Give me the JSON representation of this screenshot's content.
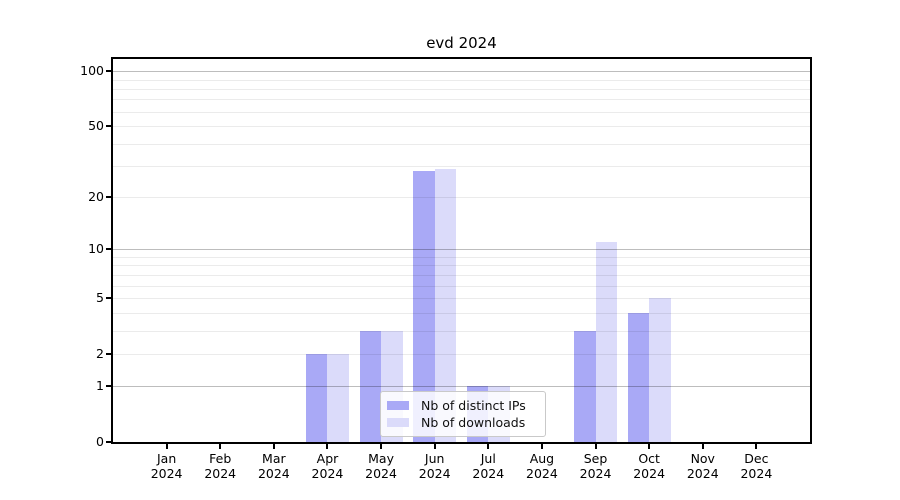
{
  "title": "evd 2024",
  "chart_data": {
    "type": "bar",
    "title": "evd 2024",
    "categories": [
      "Jan",
      "Feb",
      "Mar",
      "Apr",
      "May",
      "Jun",
      "Jul",
      "Aug",
      "Sep",
      "Oct",
      "Nov",
      "Dec"
    ],
    "category_year": "2024",
    "series": [
      {
        "name": "Nb of distinct IPs",
        "color": "#a9a9f6",
        "values": [
          0,
          0,
          0,
          2,
          3,
          28,
          1,
          0,
          3,
          4,
          0,
          0
        ]
      },
      {
        "name": "Nb of downloads",
        "color": "#dbdbfa",
        "values": [
          0,
          0,
          0,
          2,
          3,
          29,
          1,
          0,
          11,
          5,
          0,
          0
        ]
      }
    ],
    "xlabel": "",
    "ylabel": "",
    "y_scale": "log1p",
    "ylim": [
      0,
      116.5
    ],
    "y_ticks": [
      0,
      1,
      2,
      5,
      10,
      20,
      50,
      100
    ],
    "minor_gridlines": [
      2,
      3,
      4,
      5,
      6,
      7,
      8,
      9,
      20,
      30,
      40,
      50,
      60,
      70,
      80,
      90
    ],
    "major_gridlines": [
      1,
      10,
      100
    ],
    "grid": true,
    "legend_position": "inside-bottom-center"
  },
  "colors": {
    "bar_ips": "#a9a9f6",
    "bar_downloads": "#dbdbfa",
    "grid_minor": "rgba(0,0,0,0.08)",
    "grid_major": "rgba(0,0,0,0.26)",
    "axis": "#000000",
    "legend_border": "#c9c9c9"
  }
}
